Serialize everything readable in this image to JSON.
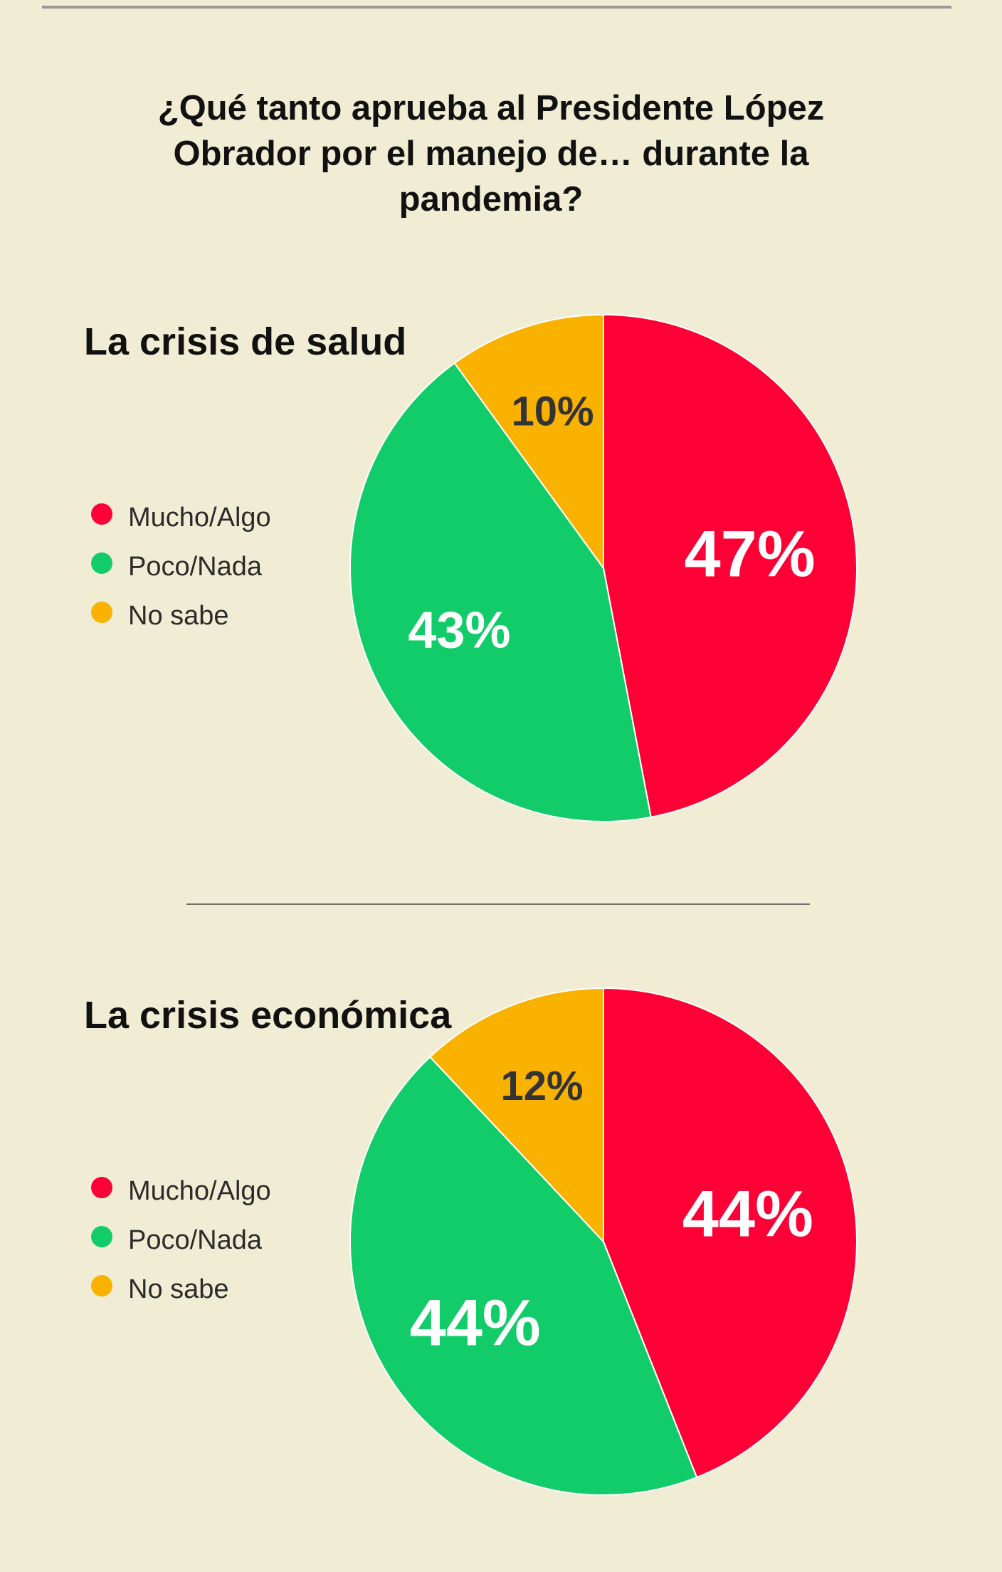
{
  "title": "¿Qué tanto aprueba al Presidente López Obrador por el manejo de… durante la pandemia?",
  "colors": {
    "mucho": "#ff0036",
    "poco": "#12cc6a",
    "nosabe": "#f9b200",
    "background": "#f0edd4"
  },
  "chart_data": [
    {
      "type": "pie",
      "title": "La crisis de salud",
      "slices": [
        {
          "name": "Mucho/Algo",
          "value": 47,
          "label": "47%",
          "color": "#ff0036"
        },
        {
          "name": "Poco/Nada",
          "value": 43,
          "label": "43%",
          "color": "#12cc6a"
        },
        {
          "name": "No sabe",
          "value": 10,
          "label": "10%",
          "color": "#f9b200"
        }
      ],
      "legend": [
        "Mucho/Algo",
        "Poco/Nada",
        "No sabe"
      ],
      "legend_position": "left"
    },
    {
      "type": "pie",
      "title": "La crisis económica",
      "slices": [
        {
          "name": "Mucho/Algo",
          "value": 44,
          "label": "44%",
          "color": "#ff0036"
        },
        {
          "name": "Poco/Nada",
          "value": 44,
          "label": "44%",
          "color": "#12cc6a"
        },
        {
          "name": "No sabe",
          "value": 12,
          "label": "12%",
          "color": "#f9b200"
        }
      ],
      "legend": [
        "Mucho/Algo",
        "Poco/Nada",
        "No sabe"
      ],
      "legend_position": "left"
    }
  ]
}
